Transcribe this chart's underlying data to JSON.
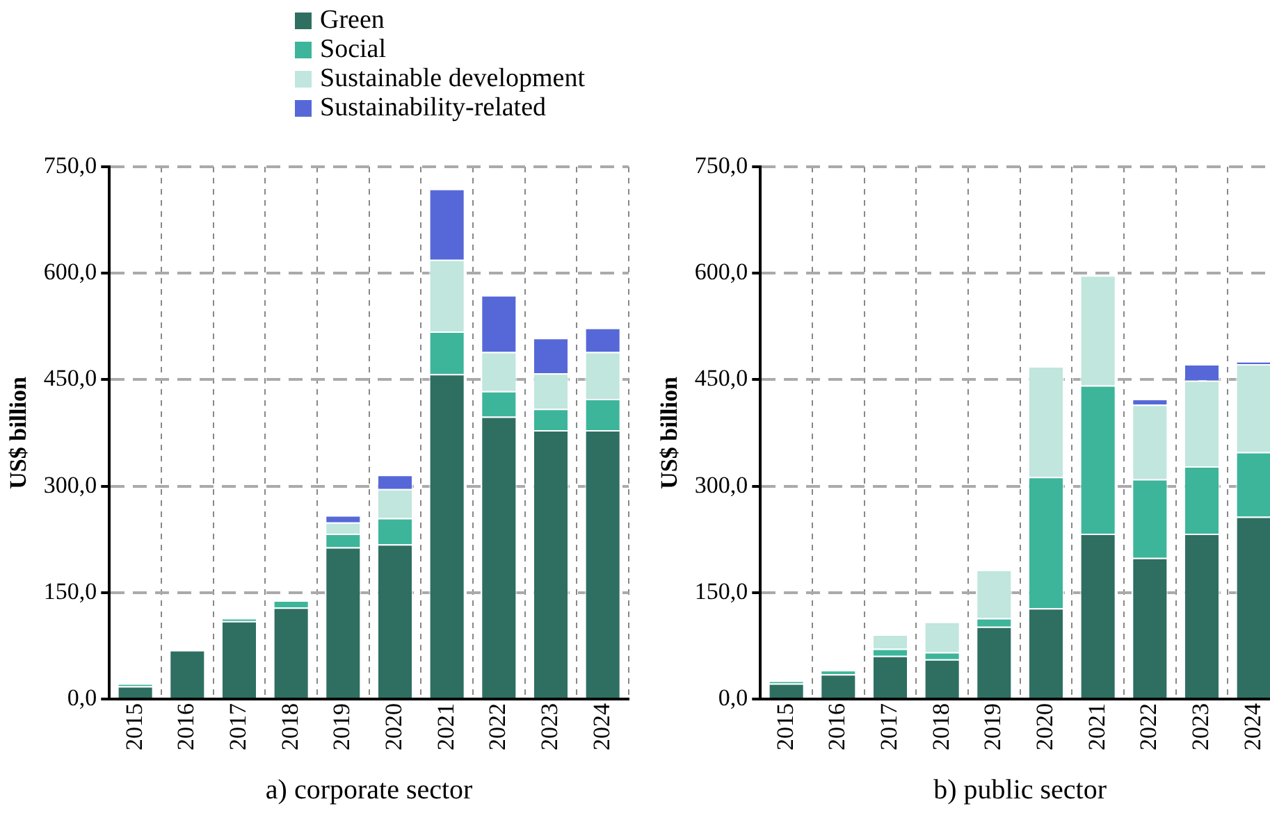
{
  "chart_data": [
    {
      "type": "bar",
      "stacked": true,
      "xlabel": "a) corporate sector",
      "ylabel": "US$ billion",
      "legend": "top",
      "grid": true,
      "categories": [
        "2015",
        "2016",
        "2017",
        "2018",
        "2019",
        "2020",
        "2021",
        "2022",
        "2023",
        "2024"
      ],
      "ylim": [
        0,
        750
      ],
      "yticks": [
        {
          "value": 0,
          "label": "0,0"
        },
        {
          "value": 150,
          "label": "150,0"
        },
        {
          "value": 300,
          "label": "300,0"
        },
        {
          "value": 450,
          "label": "450,0"
        },
        {
          "value": 600,
          "label": "600,0"
        },
        {
          "value": 750,
          "label": "750,0"
        }
      ],
      "series": [
        {
          "name": "Green",
          "color": "#2e6f62",
          "values": [
            18,
            69,
            110,
            129,
            214,
            218,
            458,
            398,
            379,
            379
          ]
        },
        {
          "name": "Social",
          "color": "#3db59a",
          "values": [
            4,
            0,
            4,
            10,
            19,
            37,
            60,
            36,
            30,
            44
          ]
        },
        {
          "name": "Sustainable development",
          "color": "#c0e6dd",
          "values": [
            0,
            0,
            0,
            0,
            16,
            41,
            101,
            55,
            50,
            66
          ]
        },
        {
          "name": "Sustainability-related",
          "color": "#5668d8",
          "values": [
            0,
            0,
            0,
            0,
            10,
            20,
            100,
            80,
            50,
            34
          ]
        }
      ]
    },
    {
      "type": "bar",
      "stacked": true,
      "xlabel": "b) public sector",
      "ylabel": "US$ billion",
      "grid": true,
      "categories": [
        "2015",
        "2016",
        "2017",
        "2018",
        "2019",
        "2020",
        "2021",
        "2022",
        "2023",
        "2024"
      ],
      "ylim": [
        0,
        750
      ],
      "yticks": [
        {
          "value": 0,
          "label": "0,0"
        },
        {
          "value": 150,
          "label": "150,0"
        },
        {
          "value": 300,
          "label": "300,0"
        },
        {
          "value": 450,
          "label": "450,0"
        },
        {
          "value": 600,
          "label": "600,0"
        },
        {
          "value": 750,
          "label": "750,0"
        }
      ],
      "series": [
        {
          "color": "#2e6f62",
          "values": [
            22,
            35,
            61,
            56,
            102,
            128,
            233,
            199,
            233,
            257
          ]
        },
        {
          "color": "#3db59a",
          "values": [
            4,
            6,
            10,
            10,
            12,
            185,
            209,
            111,
            95,
            91
          ]
        },
        {
          "color": "#c0e6dd",
          "values": [
            0,
            0,
            20,
            43,
            68,
            156,
            155,
            105,
            121,
            124
          ]
        },
        {
          "color": "#5668d8",
          "values": [
            0,
            0,
            0,
            0,
            0,
            0,
            0,
            8,
            23,
            4
          ]
        }
      ]
    }
  ]
}
